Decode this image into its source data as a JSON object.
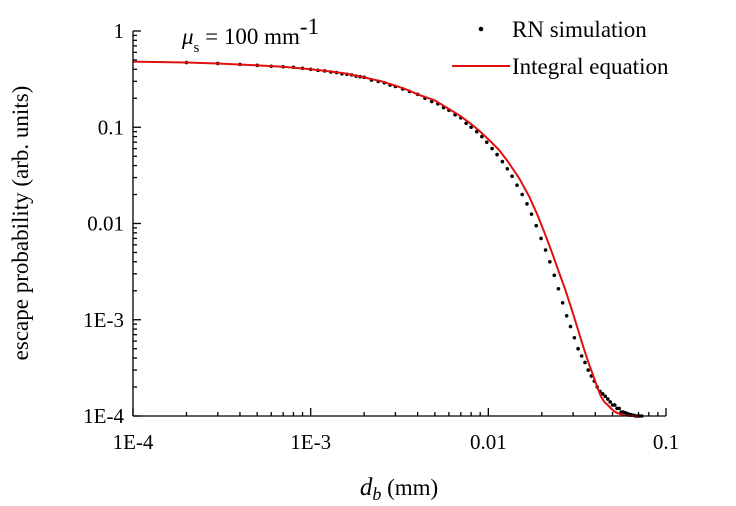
{
  "chart_data": {
    "type": "scatter",
    "xscale": "log",
    "yscale": "log",
    "xlim": [
      0.0001,
      0.1
    ],
    "ylim": [
      0.0001,
      1
    ],
    "xticks": [
      {
        "value": 0.0001,
        "label": "1E-4"
      },
      {
        "value": 0.001,
        "label": "1E-3"
      },
      {
        "value": 0.01,
        "label": "0.01"
      },
      {
        "value": 0.1,
        "label": "0.1"
      }
    ],
    "yticks": [
      {
        "value": 1,
        "label": "1"
      },
      {
        "value": 0.1,
        "label": "0.1"
      },
      {
        "value": 0.01,
        "label": "0.01"
      },
      {
        "value": 0.001,
        "label": "1E-3"
      },
      {
        "value": 0.0001,
        "label": "1E-4"
      }
    ],
    "xlabel": {
      "symbol": "d",
      "sub": "b",
      "unit": " (mm)"
    },
    "ylabel": "escape probability (arb. units)",
    "annotation": {
      "symbol": "μ",
      "sub": "s",
      "text": " = 100 mm",
      "sup": "-1"
    },
    "legend": {
      "position": "top-right",
      "entries": [
        "RN simulation",
        "Integral equation"
      ]
    },
    "series": [
      {
        "name": "RN simulation",
        "type": "scatter",
        "color": "#000000",
        "x": [
          0.0002,
          0.0003,
          0.0004,
          0.0005,
          0.0006,
          0.0007,
          0.0008,
          0.0009,
          0.001,
          0.0011,
          0.0012,
          0.0013,
          0.0014,
          0.0015,
          0.0016,
          0.0017,
          0.0018,
          0.0019,
          0.002,
          0.0022,
          0.0024,
          0.0026,
          0.0028,
          0.003,
          0.0033,
          0.0036,
          0.004,
          0.0044,
          0.0048,
          0.0052,
          0.0056,
          0.006,
          0.0065,
          0.007,
          0.0075,
          0.008,
          0.0086,
          0.0092,
          0.0098,
          0.0105,
          0.0112,
          0.012,
          0.0128,
          0.0136,
          0.0145,
          0.0155,
          0.0165,
          0.0175,
          0.0186,
          0.0198,
          0.021,
          0.0222,
          0.0235,
          0.0248,
          0.0262,
          0.0276,
          0.029,
          0.0305,
          0.032,
          0.0335,
          0.035,
          0.0365,
          0.038,
          0.0395,
          0.041,
          0.0425,
          0.044,
          0.0455,
          0.047,
          0.0485,
          0.05,
          0.0515,
          0.053,
          0.0545,
          0.056,
          0.0575,
          0.059,
          0.0605,
          0.062,
          0.0635,
          0.065,
          0.0665,
          0.068,
          0.0695,
          0.071,
          0.073
        ],
        "y": [
          0.47,
          0.46,
          0.45,
          0.44,
          0.43,
          0.425,
          0.42,
          0.41,
          0.4,
          0.39,
          0.385,
          0.375,
          0.37,
          0.36,
          0.355,
          0.35,
          0.34,
          0.335,
          0.33,
          0.31,
          0.3,
          0.29,
          0.275,
          0.265,
          0.25,
          0.235,
          0.22,
          0.2,
          0.185,
          0.175,
          0.16,
          0.15,
          0.135,
          0.125,
          0.11,
          0.1,
          0.09,
          0.08,
          0.07,
          0.06,
          0.052,
          0.044,
          0.037,
          0.031,
          0.025,
          0.02,
          0.016,
          0.0125,
          0.0095,
          0.007,
          0.0053,
          0.004,
          0.0029,
          0.0021,
          0.0015,
          0.0011,
          0.00085,
          0.00065,
          0.0005,
          0.00042,
          0.00036,
          0.0003,
          0.00026,
          0.00023,
          0.0002,
          0.00018,
          0.00017,
          0.00016,
          0.00015,
          0.00014,
          0.00013,
          0.00013,
          0.00012,
          0.00012,
          0.00011,
          0.00011,
          0.000108,
          0.000106,
          0.000104,
          0.000103,
          0.000102,
          0.000101,
          0.0001,
          0.0001,
          0.0001,
          0.0001
        ]
      },
      {
        "name": "Integral equation",
        "type": "line",
        "color": "#e01010",
        "x": [
          0.0001,
          0.0002,
          0.0003,
          0.0005,
          0.0007,
          0.001,
          0.0013,
          0.0016,
          0.002,
          0.0025,
          0.003,
          0.0035,
          0.004,
          0.005,
          0.006,
          0.007,
          0.008,
          0.009,
          0.01,
          0.0115,
          0.013,
          0.015,
          0.017,
          0.019,
          0.021,
          0.023,
          0.025,
          0.027,
          0.029,
          0.031,
          0.033,
          0.035,
          0.037,
          0.039,
          0.041,
          0.043,
          0.045,
          0.047,
          0.049,
          0.051,
          0.053,
          0.055,
          0.057,
          0.059,
          0.061,
          0.063,
          0.065,
          0.067,
          0.069,
          0.07
        ],
        "y": [
          0.48,
          0.47,
          0.46,
          0.44,
          0.425,
          0.4,
          0.38,
          0.36,
          0.33,
          0.3,
          0.27,
          0.245,
          0.22,
          0.19,
          0.155,
          0.13,
          0.108,
          0.09,
          0.075,
          0.058,
          0.043,
          0.029,
          0.019,
          0.012,
          0.0075,
          0.0048,
          0.0031,
          0.0021,
          0.0014,
          0.00095,
          0.00065,
          0.00046,
          0.00034,
          0.00026,
          0.0002,
          0.00016,
          0.00014,
          0.00013,
          0.00012,
          0.000112,
          0.000108,
          0.000105,
          0.000103,
          0.000102,
          0.000101,
          0.0001,
          0.0001,
          0.0001,
          0.0001,
          0.0001
        ]
      }
    ]
  }
}
